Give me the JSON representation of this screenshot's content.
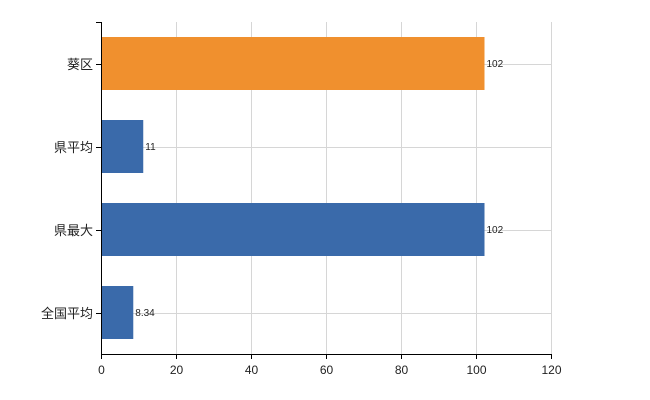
{
  "chart_data": {
    "type": "bar",
    "orientation": "horizontal",
    "title": "",
    "xlabel": "",
    "ylabel": "",
    "categories": [
      "葵区",
      "県平均",
      "県最大",
      "全国平均"
    ],
    "values": [
      102,
      11,
      102,
      8.34
    ],
    "data_labels": [
      "102",
      "11",
      "102",
      "8.34"
    ],
    "bar_colors": [
      "#f0902e",
      "#3a6aaa",
      "#3a6aaa",
      "#3a6aaa"
    ],
    "xlim": [
      0,
      120
    ],
    "x_ticks": [
      0,
      20,
      40,
      60,
      80,
      100,
      120
    ],
    "grid": true,
    "legend": "none"
  }
}
